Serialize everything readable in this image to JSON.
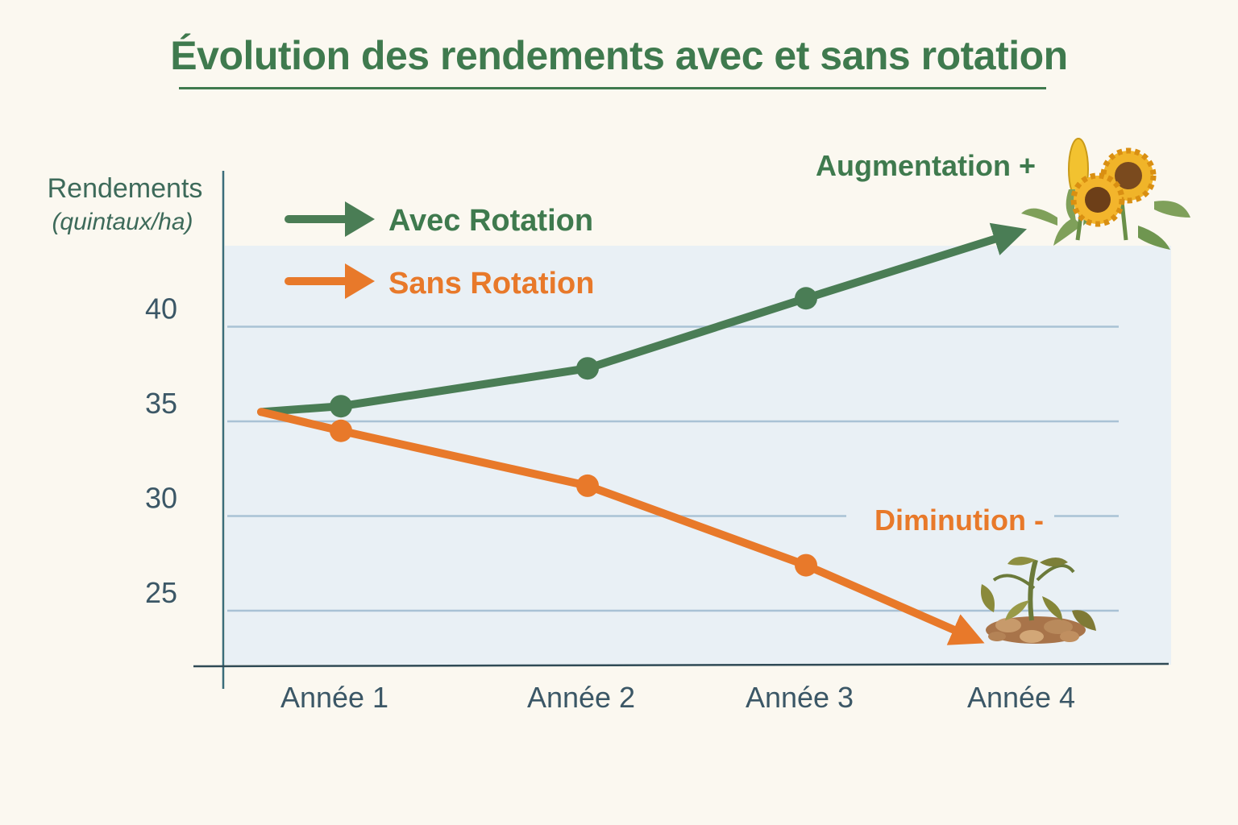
{
  "title": "Évolution des rendements avec et sans rotation",
  "chart_data": {
    "type": "line",
    "title": "Évolution des rendements avec et sans rotation",
    "ylabel": "Rendements",
    "ylabel_unit": "(quintaux/ha)",
    "xlabel": "",
    "categories": [
      "Année 1",
      "Année 2",
      "Année 3",
      "Année 4"
    ],
    "yticks": [
      25,
      30,
      35,
      40
    ],
    "ylim": [
      22,
      44
    ],
    "start_value": 35.5,
    "series": [
      {
        "name": "Avec Rotation",
        "color": "#4a7d55",
        "values": [
          35.8,
          37.8,
          41.5,
          45
        ]
      },
      {
        "name": "Sans Rotation",
        "color": "#e8792a",
        "values": [
          34.5,
          31.6,
          27.4,
          23.5
        ]
      }
    ],
    "legend_position": "top-left",
    "grid": true
  },
  "annotations": {
    "increase": "Augmentation +",
    "decrease": "Diminution -"
  },
  "icons": {
    "increase": "sunflower-corn-icon",
    "decrease": "wilted-plant-icon"
  }
}
